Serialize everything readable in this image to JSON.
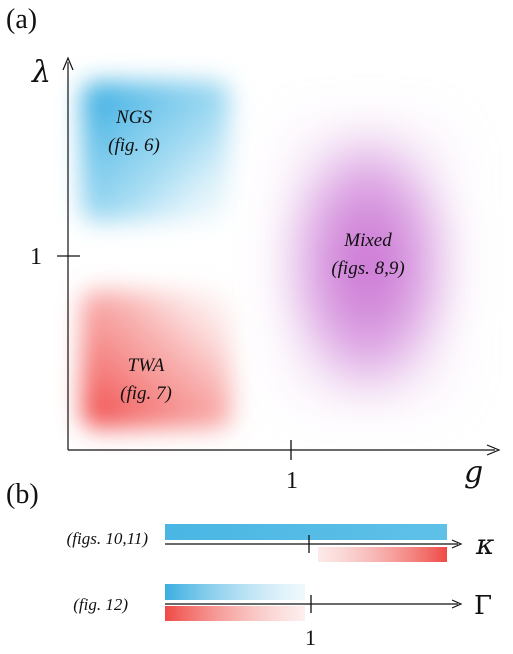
{
  "panel_a": {
    "label": "(a)",
    "y_axis_symbol": "λ",
    "x_axis_symbol": "g",
    "y_tick": "1",
    "x_tick": "1",
    "regions": [
      {
        "id": "ngs",
        "line1": "NGS",
        "line2": "(fig. 6)",
        "color": "#3aaee0"
      },
      {
        "id": "twa",
        "line1": "TWA",
        "line2": "(fig. 7)",
        "color": "#f04a48"
      },
      {
        "id": "mixed",
        "line1": "Mixed",
        "line2": "(figs. 8,9)",
        "color": "#c66ad0"
      }
    ]
  },
  "panel_b": {
    "label": "(b)",
    "rows": [
      {
        "id": "kappa",
        "ref": "(figs. 10,11)",
        "axis_symbol": "κ"
      },
      {
        "id": "gamma",
        "ref": "(fig. 12)",
        "axis_symbol": "Γ"
      }
    ],
    "tick": "1",
    "colors": {
      "blue": "#56bde6",
      "red": "#f0605a"
    }
  }
}
